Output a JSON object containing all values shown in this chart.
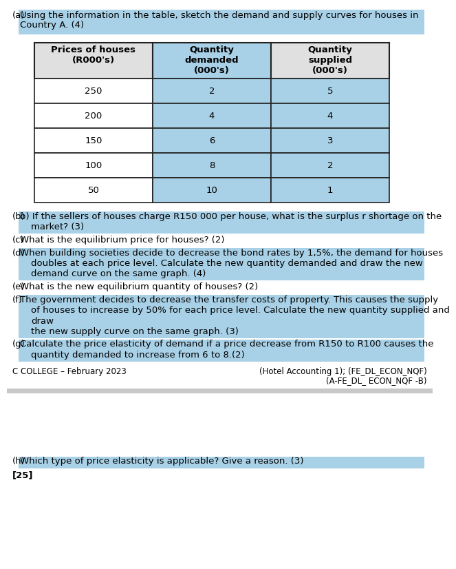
{
  "page_bg": "#ffffff",
  "highlight_color": "#a8d0e6",
  "header_bg": "#e0e0e0",
  "border_color": "#222222",
  "text_color": "#000000",
  "part_a_label": "(a)",
  "part_a_line1": "Using the information in the table, sketch the demand and supply curves for houses in",
  "part_a_line2": "Country A. (4)",
  "table_headers": [
    "Prices of houses\n(R000's)",
    "Quantity\ndemanded\n(000's)",
    "Quantity\nsupplied\n(000's)"
  ],
  "table_data": [
    [
      "250",
      "2",
      "5"
    ],
    [
      "200",
      "4",
      "4"
    ],
    [
      "150",
      "6",
      "3"
    ],
    [
      "100",
      "8",
      "2"
    ],
    [
      "50",
      "10",
      "1"
    ]
  ],
  "questions": [
    {
      "label": "(b)",
      "lines": [
        "b) If the sellers of houses charge R150 000 per house, what is the surplus r shortage on the",
        "market? (3)"
      ],
      "highlight_lines": [
        1,
        2
      ]
    },
    {
      "label": "(c)",
      "lines": [
        "What is the equilibrium price for houses? (2)"
      ],
      "highlight_lines": []
    },
    {
      "label": "(d)",
      "lines": [
        "When building societies decide to decrease the bond rates by 1,5%, the demand for houses",
        "doubles at each price level. Calculate the new quantity demanded and draw the new",
        "demand curve on the same graph. (4)"
      ],
      "highlight_lines": [
        1,
        2,
        3
      ]
    },
    {
      "label": "(e)",
      "lines": [
        "What is the new equilibrium quantity of houses? (2)"
      ],
      "highlight_lines": []
    },
    {
      "label": "(f)",
      "lines": [
        "The government decides to decrease the transfer costs of property. This causes the supply",
        "of houses to increase by 50% for each price level. Calculate the new quantity supplied and",
        "draw",
        "the new supply curve on the same graph. (3)"
      ],
      "highlight_lines": [
        1,
        2,
        3,
        4
      ]
    },
    {
      "label": "(g)",
      "lines": [
        "Calculate the price elasticity of demand if a price decrease from R150 to R100 causes the",
        "quantity demanded to increase from 6 to 8.(2)"
      ],
      "highlight_lines": [
        1,
        2
      ]
    }
  ],
  "footer_left": "C COLLEGE – February 2023",
  "footer_right_line1": "(Hotel Accounting 1); (FE_DL_ECON_NQF)",
  "footer_right_line2": "(A-FE_DL_ ECON_NQF -B)",
  "part_h_label": "(h)",
  "part_h_text": "Which type of price elasticity is applicable? Give a reason. (3)",
  "total_marks": "[25]",
  "font_size": 9.5,
  "font_size_small": 8.5,
  "font_size_bold": 9.5
}
